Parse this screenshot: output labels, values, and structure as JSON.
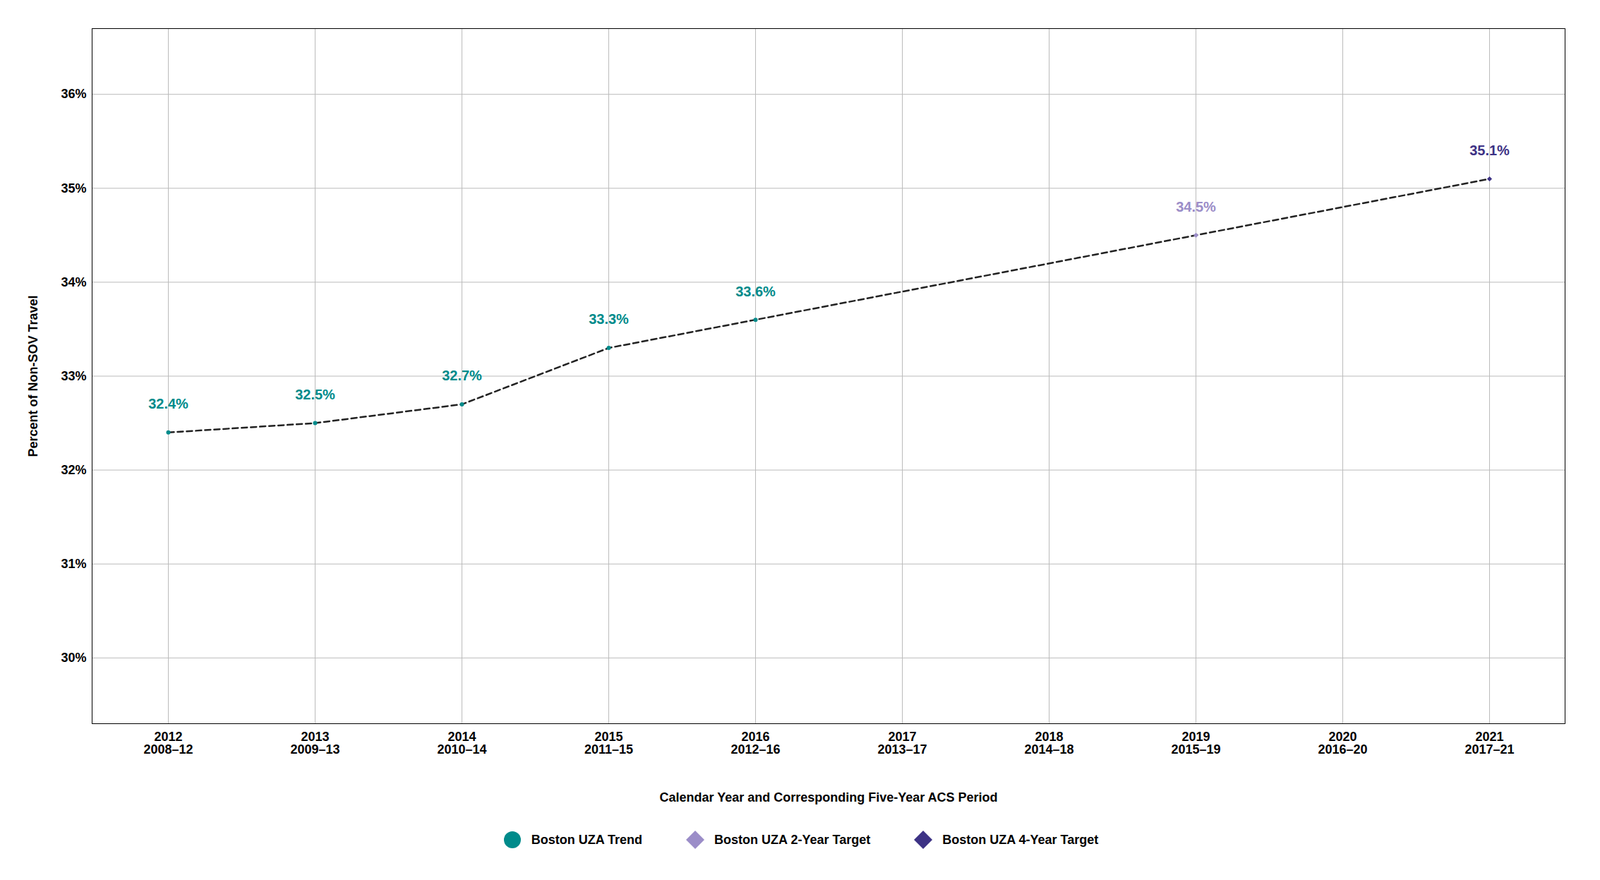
{
  "chart_data": {
    "type": "scatter",
    "xlabel": "Calendar Year and Corresponding Five-Year ACS Period",
    "ylabel": "Percent of Non-SOV Travel",
    "categories": [
      "2012\n2008–12",
      "2013\n2009–13",
      "2014\n2010–14",
      "2015\n2011–15",
      "2016\n2012–16",
      "2017\n2013–17",
      "2018\n2014–18",
      "2019\n2015–19",
      "2020\n2016–20",
      "2021\n2017–21"
    ],
    "ylim": [
      29.3,
      36.7
    ],
    "yticks": [
      {
        "value": 30,
        "label": "30%"
      },
      {
        "value": 31,
        "label": "31%"
      },
      {
        "value": 32,
        "label": "32%"
      },
      {
        "value": 33,
        "label": "33%"
      },
      {
        "value": 34,
        "label": "34%"
      },
      {
        "value": 35,
        "label": "35%"
      },
      {
        "value": 36,
        "label": "36%"
      }
    ],
    "grid": true,
    "legend": "bottom",
    "data_labels": true,
    "line_style": "dashed",
    "color": "#222222",
    "series": [
      {
        "name": "Boston UZA Trend",
        "color": "#008B8B",
        "marker": "circle",
        "values": [
          32.4,
          32.5,
          32.7,
          33.3,
          33.6,
          null,
          null,
          null,
          null,
          null
        ],
        "value_labels": [
          "32.4%",
          "32.5%",
          "32.7%",
          "33.3%",
          "33.6%",
          null,
          null,
          null,
          null,
          null
        ]
      },
      {
        "name": "Boston UZA 2-Year Target",
        "color": "#9B8DC8",
        "marker": "diamond",
        "values": [
          null,
          null,
          null,
          null,
          null,
          null,
          null,
          34.5,
          null,
          null
        ],
        "value_labels": [
          null,
          null,
          null,
          null,
          null,
          null,
          null,
          "34.5%",
          null,
          null
        ]
      },
      {
        "name": "Boston UZA 4-Year Target",
        "color": "#3D3285",
        "marker": "diamond",
        "values": [
          null,
          null,
          null,
          null,
          null,
          null,
          null,
          null,
          null,
          35.1
        ],
        "value_labels": [
          null,
          null,
          null,
          null,
          null,
          null,
          null,
          null,
          null,
          "35.1%"
        ]
      }
    ]
  }
}
